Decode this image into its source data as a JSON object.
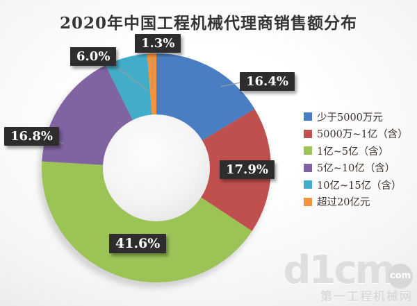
{
  "title": "2020年中国工程机械代理商销售额分布",
  "chart_data": {
    "type": "pie",
    "subtype": "donut",
    "title": "2020年中国工程机械代理商销售额分布",
    "start_angle_deg": 0,
    "direction": "clockwise",
    "categories": [
      "少于5000万元",
      "5000万~1亿（含）",
      "1亿~5亿（含）",
      "5亿~10亿（含）",
      "10亿~15亿（含）",
      "超过20亿元"
    ],
    "values": [
      16.4,
      17.9,
      41.6,
      16.8,
      6.0,
      1.3
    ],
    "labels": [
      "16.4%",
      "17.9%",
      "41.6%",
      "16.8%",
      "6.0%",
      "1.3%"
    ],
    "colors": [
      "#4a7ec2",
      "#c0504d",
      "#9cc355",
      "#8064a2",
      "#43acc8",
      "#f2943e"
    ],
    "legend_position": "right",
    "label_style": "white-on-dark-box"
  },
  "legend": {
    "items": [
      {
        "label": "少于5000万元",
        "color": "#4a7ec2"
      },
      {
        "label": "5000万~1亿（含）",
        "color": "#c0504d"
      },
      {
        "label": "1亿~5亿（含）",
        "color": "#9cc355"
      },
      {
        "label": "5亿~10亿（含）",
        "color": "#8064a2"
      },
      {
        "label": "10亿~15亿（含）",
        "color": "#43acc8"
      },
      {
        "label": "超过20亿元",
        "color": "#f2943e"
      }
    ]
  },
  "watermark": {
    "logo": "d1cm",
    "tld": "com",
    "site_name": "第一工程机械网"
  }
}
